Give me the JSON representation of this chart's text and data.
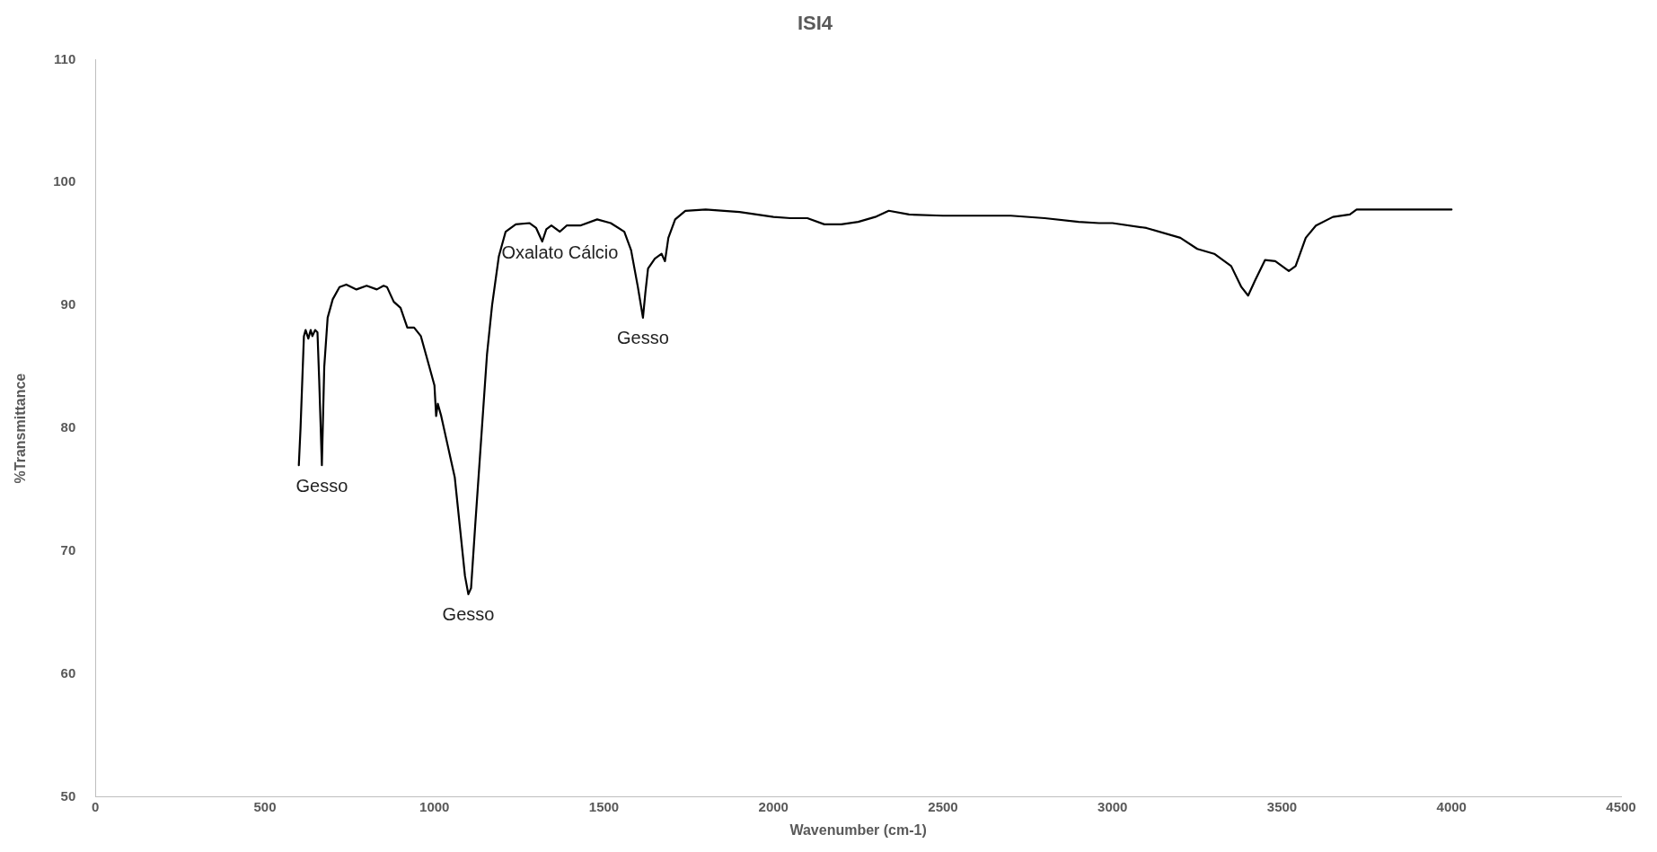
{
  "chart_data": {
    "type": "line",
    "title": "ISI4",
    "xlabel": "Wavenumber (cm-1)",
    "ylabel": "%Transmittance",
    "x": [
      600,
      605,
      615,
      620,
      628,
      635,
      640,
      648,
      655,
      660,
      668,
      675,
      685,
      700,
      720,
      740,
      770,
      800,
      830,
      850,
      860,
      880,
      900,
      920,
      940,
      960,
      980,
      1000,
      1005,
      1010,
      1020,
      1040,
      1060,
      1075,
      1090,
      1100,
      1108,
      1120,
      1140,
      1155,
      1170,
      1190,
      1210,
      1240,
      1280,
      1300,
      1318,
      1330,
      1345,
      1370,
      1390,
      1430,
      1480,
      1520,
      1560,
      1580,
      1600,
      1615,
      1622,
      1630,
      1650,
      1670,
      1680,
      1690,
      1710,
      1740,
      1800,
      1900,
      2000,
      2050,
      2100,
      2150,
      2200,
      2250,
      2300,
      2340,
      2400,
      2500,
      2600,
      2700,
      2800,
      2900,
      2960,
      3000,
      3100,
      3200,
      3250,
      3300,
      3350,
      3380,
      3400,
      3420,
      3450,
      3480,
      3500,
      3520,
      3540,
      3570,
      3600,
      3650,
      3700,
      3720,
      4000
    ],
    "series": [
      {
        "color": "#000000",
        "values": [
          77,
          80,
          87.5,
          88,
          87.3,
          88,
          87.5,
          88,
          87.8,
          84,
          77,
          85,
          89,
          90.5,
          91.5,
          91.7,
          91.3,
          91.6,
          91.3,
          91.6,
          91.5,
          90.3,
          89.8,
          88.2,
          88.2,
          87.5,
          85.5,
          83.5,
          81,
          82,
          81,
          78.5,
          76,
          72,
          68,
          66.5,
          67,
          72,
          80,
          86,
          90,
          94,
          96,
          96.6,
          96.7,
          96.3,
          95.2,
          96.2,
          96.5,
          96,
          96.5,
          96.5,
          97,
          96.7,
          96,
          94.5,
          91.5,
          89,
          91,
          93,
          93.8,
          94.2,
          93.6,
          95.5,
          97,
          97.7,
          97.8,
          97.6,
          97.2,
          97.1,
          97.1,
          96.6,
          96.6,
          96.8,
          97.2,
          97.7,
          97.4,
          97.3,
          97.3,
          97.3,
          97.1,
          96.8,
          96.7,
          96.7,
          96.3,
          95.5,
          94.6,
          94.2,
          93.2,
          91.5,
          90.8,
          92,
          93.7,
          93.6,
          93.2,
          92.8,
          93.2,
          95.5,
          96.5,
          97.2,
          97.4,
          97.8,
          97.8
        ]
      }
    ],
    "xlim": [
      0,
      4500
    ],
    "xticks": [
      0,
      500,
      1000,
      1500,
      2000,
      2500,
      3000,
      3500,
      4000,
      4500
    ],
    "ylim": [
      50,
      110
    ],
    "yticks": [
      50,
      60,
      70,
      80,
      90,
      100,
      110
    ],
    "grid": false,
    "legend": false,
    "marker": "none",
    "line_style": "solid",
    "annotations": [
      {
        "text": "Gesso",
        "x": 668,
        "y": 77
      },
      {
        "text": "Gesso",
        "x": 1100,
        "y": 66.5
      },
      {
        "text": "Oxalato Cálcio",
        "x": 1370,
        "y": 96
      },
      {
        "text": "Gesso",
        "x": 1615,
        "y": 89
      }
    ]
  }
}
